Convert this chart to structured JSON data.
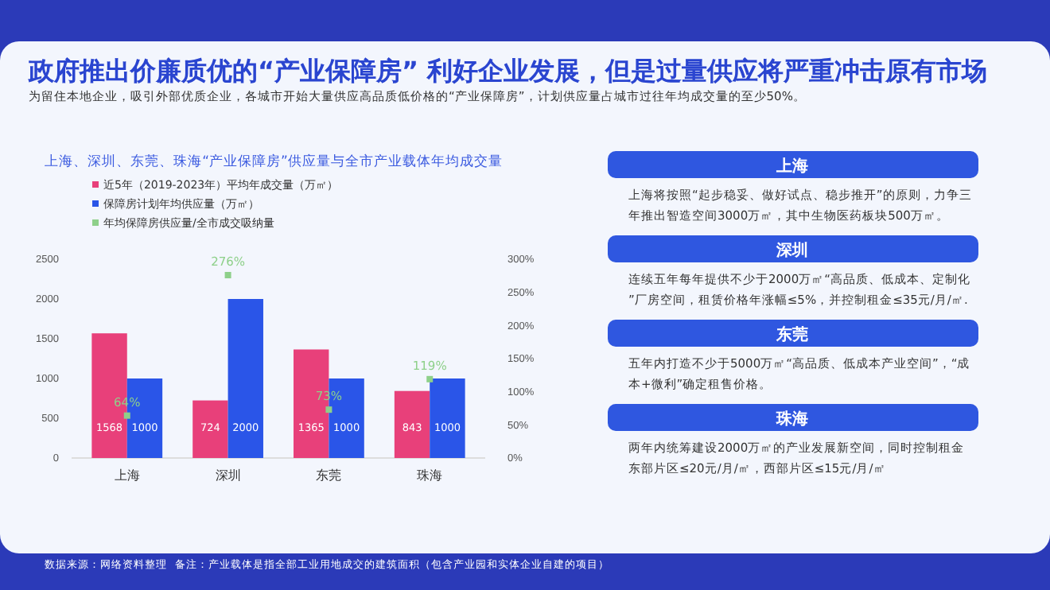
{
  "chart_data": {
    "type": "bar",
    "title": "政府推出价廉质优的“产业保障房” 利好企业发展，但是过量供应将严重冲击原有市场",
    "subtitle": "为留住本地企业，吸引外部优质企业，各城市开始大量供应高品质低价格的“产业保障房”，计划供应量占城市过往年均成交量的至少50%。",
    "categories": [
      "上海",
      "深圳",
      "东莞",
      "珠海"
    ],
    "series": [
      {
        "name": "近5年（2019-2023年）平均年成交量（万㎡）",
        "color": "#e8407a",
        "values": [
          1568,
          724,
          1365,
          843
        ]
      },
      {
        "name": "保障房计划年均供应量（万㎡）",
        "color": "#2a55e8",
        "values": [
          1000,
          2000,
          1000,
          1000
        ]
      },
      {
        "name": "年均保障房供应量/全市成交吸纳量",
        "type": "scatter",
        "axis": "y2",
        "color": "#8ed08a",
        "values": [
          64,
          276,
          73,
          119
        ],
        "value_labels": [
          "64%",
          "276%",
          "73%",
          "119%"
        ]
      }
    ],
    "ylim": [
      0,
      2500
    ],
    "yticks": [
      0,
      500,
      1000,
      1500,
      2000,
      2500
    ],
    "y2lim": [
      0,
      300
    ],
    "y2ticks": [
      {
        "value": 0,
        "label": "0%"
      },
      {
        "value": 50,
        "label": "50%"
      },
      {
        "value": 100,
        "label": "100%"
      },
      {
        "value": 150,
        "label": "150%"
      },
      {
        "value": 200,
        "label": "200%"
      },
      {
        "value": 250,
        "label": "250%"
      },
      {
        "value": 300,
        "label": "300%"
      }
    ],
    "data_labels": true,
    "legend": "top left",
    "marker": "square",
    "annotations": [
      "上海、深圳、东莞、珠海“产业保障房”供应量与全市产业载体年均成交量",
      "上海",
      "上海将按照“起步稳妥、做好试点、稳步推开”的原则，力争三年推出智造空间3000万㎡，其中生物医药板块500万㎡。",
      "深圳",
      "连续五年每年提供不少于2000万㎡“高品质、低成本、定制化”厂房空间，租赁价格年涨幅≤5%，并控制租金≤35元/月/㎡.",
      "东莞",
      "五年内打造不少于5000万㎡“高品质、低成本产业空间”，“成本+微利”确定租售价格。",
      "珠海",
      "两年内统筹建设2000万㎡的产业发展新空间，同时控制租金东部片区≤20元/月/㎡，西部片区≤15元/月/㎡",
      "数据来源：网络资料整理",
      "备注：产业载体是指全部工业用地成交的建筑面积（包含产业园和实体企业自建的项目）"
    ]
  }
}
